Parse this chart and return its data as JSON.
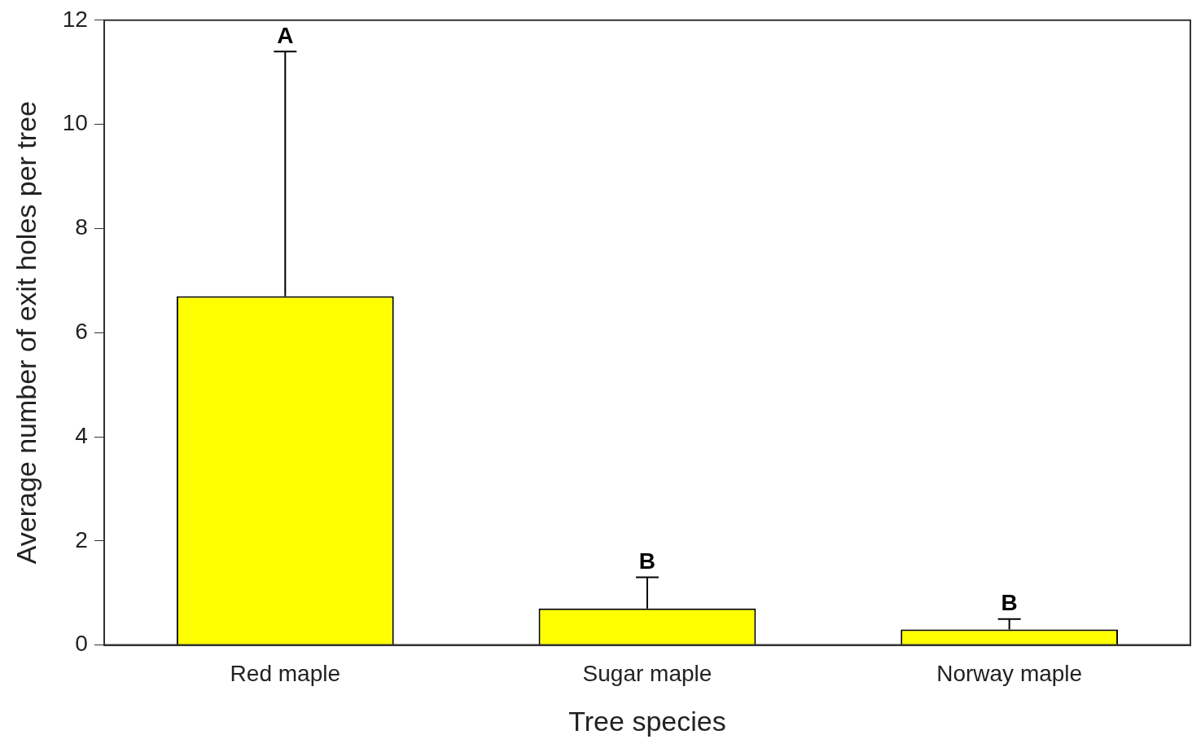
{
  "chart_data": {
    "type": "bar",
    "xlabel": "Tree species",
    "ylabel": "Average number of exit holes per tree",
    "categories": [
      "Red maple",
      "Sugar maple",
      "Norway maple"
    ],
    "values": [
      6.7,
      0.7,
      0.3
    ],
    "color": "#ffff00",
    "errors": [
      [
        6.7,
        11.4
      ],
      [
        0.7,
        1.3
      ],
      [
        0.3,
        0.5
      ]
    ],
    "ylim": [
      0,
      12
    ],
    "yticks": [
      0,
      2,
      4,
      6,
      8,
      10,
      12
    ],
    "grid": false,
    "legend": false,
    "annotations": [
      {
        "text": "A",
        "x": "Red maple",
        "y": 11.4
      },
      {
        "text": "B",
        "x": "Sugar maple",
        "y": 1.3
      },
      {
        "text": "B",
        "x": "Norway maple",
        "y": 0.5
      }
    ]
  }
}
